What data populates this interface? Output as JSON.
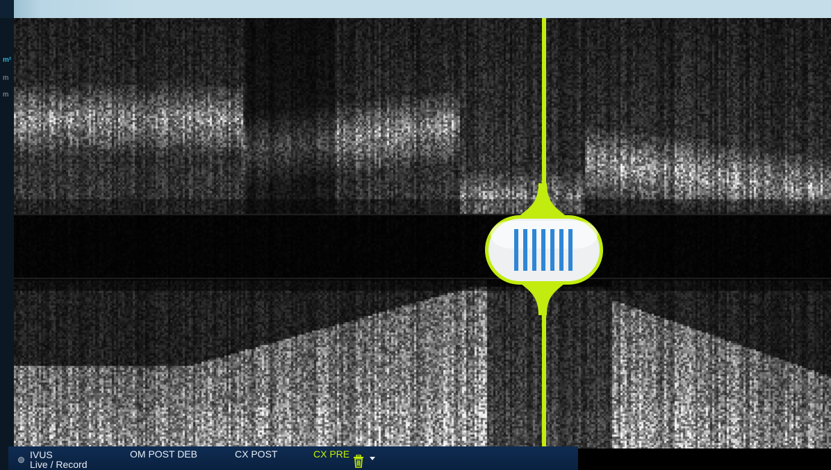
{
  "side_panel": {
    "measurements": [
      "m²",
      "m",
      "m"
    ]
  },
  "bottom_bar": {
    "mode_title": "IVUS",
    "mode_subtitle": "Live / Record",
    "runs": [
      {
        "label": "OM POST DEB"
      },
      {
        "label": "CX POST"
      },
      {
        "label": "CX PRE"
      }
    ],
    "active_run": "CX PRE"
  },
  "longitudinal_view": {
    "marker_position_fraction": 0.65
  },
  "colors": {
    "accent": "#c2ec0f",
    "handle_stripes": "#2e86d6",
    "bar_background": "#0f2c52"
  },
  "icons": {
    "trash": "trash-icon",
    "dropdown": "chevron-down-icon",
    "handle": "grip-icon",
    "record": "record-dot-icon"
  }
}
